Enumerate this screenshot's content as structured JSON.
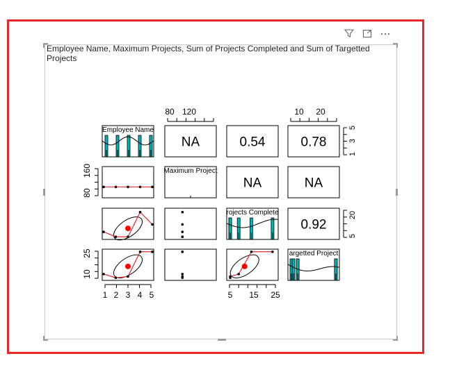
{
  "visual": {
    "title": "Employee Name, Maximum Projects, Sum of Projects Completed and Sum of Targetted Projects",
    "icons": [
      "filter-icon",
      "focus-mode-icon",
      "more-options-icon"
    ]
  },
  "chart_data": {
    "type": "scatter",
    "variables": [
      "Employee Name",
      "Maximum Projects",
      "Sum of Projects Completed",
      "Sum of Targetted Projects"
    ],
    "diagonal_labels": [
      "Employee Name",
      "Maximum Project",
      "rojects Complete",
      "argetted Project"
    ],
    "data": {
      "employee": [
        1,
        2,
        3,
        4,
        5
      ],
      "max_projects": [
        100,
        100,
        100,
        100,
        100
      ],
      "completed": [
        8,
        4,
        4,
        24,
        14
      ],
      "targetted": [
        10,
        7,
        8,
        28,
        28
      ]
    },
    "correlations": {
      "r1c2": "NA",
      "r1c3": "0.54",
      "r1c4": "0.78",
      "r2c3": "NA",
      "r2c4": "NA",
      "r3c4": "0.92"
    },
    "axes": {
      "top_col2_ticks": [
        "80",
        "120"
      ],
      "top_col4_ticks": [
        "10",
        "20"
      ],
      "right_row1_ticks": [
        "5",
        "3",
        "1"
      ],
      "right_row3_ticks": [
        "20",
        "5"
      ],
      "left_row2_ticks": [
        "160",
        "80"
      ],
      "left_row4_ticks": [
        "25",
        "10"
      ],
      "bottom_col1_ticks": [
        "1",
        "2",
        "3",
        "4",
        "5"
      ],
      "bottom_col3_ticks": [
        "5",
        "15",
        "25"
      ]
    },
    "colors": {
      "hist": "#00b5b8",
      "smooth": "#e8262b",
      "center": "#ff0000",
      "points": "#000000"
    }
  }
}
